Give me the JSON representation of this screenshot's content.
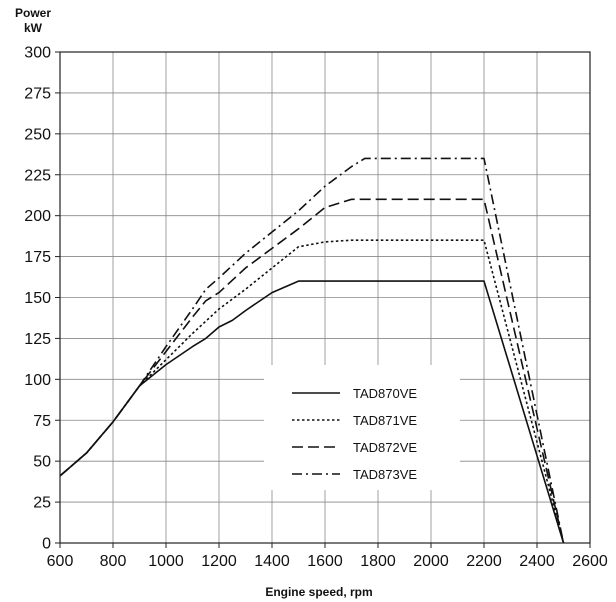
{
  "chart_data": {
    "type": "line",
    "title": "",
    "ylabel_line1": "Power",
    "ylabel_line2": "kW",
    "xlabel": "Engine speed, rpm",
    "xlim": [
      600,
      2600
    ],
    "ylim": [
      0,
      300
    ],
    "xticks": [
      600,
      800,
      1000,
      1200,
      1400,
      1600,
      1800,
      2000,
      2200,
      2400,
      2600
    ],
    "yticks": [
      0,
      25,
      50,
      75,
      100,
      125,
      150,
      175,
      200,
      225,
      250,
      275,
      300
    ],
    "grid": true,
    "legend_position": "center-bottom",
    "series": [
      {
        "name": "TAD870VE",
        "dash": "solid",
        "x": [
          600,
          700,
          800,
          900,
          1000,
          1100,
          1150,
          1200,
          1250,
          1300,
          1400,
          1500,
          1600,
          1700,
          1800,
          1900,
          2000,
          2100,
          2200,
          2500
        ],
        "y": [
          41,
          55,
          74,
          96,
          109,
          120,
          125,
          132,
          136,
          142,
          153,
          160,
          160,
          160,
          160,
          160,
          160,
          160,
          160,
          0
        ]
      },
      {
        "name": "TAD871VE",
        "dash": "dotted",
        "x": [
          600,
          700,
          800,
          900,
          1000,
          1100,
          1200,
          1300,
          1400,
          1500,
          1600,
          1700,
          1800,
          1900,
          2000,
          2100,
          2200,
          2500
        ],
        "y": [
          41,
          55,
          74,
          96,
          112,
          128,
          143,
          155,
          168,
          181,
          184,
          185,
          185,
          185,
          185,
          185,
          185,
          0
        ]
      },
      {
        "name": "TAD872VE",
        "dash": "dashed",
        "x": [
          600,
          700,
          800,
          900,
          1000,
          1100,
          1150,
          1200,
          1300,
          1400,
          1500,
          1600,
          1700,
          1800,
          1900,
          2000,
          2100,
          2200,
          2500
        ],
        "y": [
          41,
          55,
          74,
          96,
          117,
          138,
          148,
          153,
          168,
          180,
          192,
          205,
          210,
          210,
          210,
          210,
          210,
          210,
          0
        ]
      },
      {
        "name": "TAD873VE",
        "dash": "dashdot",
        "x": [
          600,
          700,
          800,
          900,
          1000,
          1100,
          1150,
          1200,
          1300,
          1400,
          1500,
          1600,
          1700,
          1750,
          1800,
          1900,
          2000,
          2100,
          2200,
          2500
        ],
        "y": [
          41,
          55,
          74,
          96,
          120,
          143,
          155,
          162,
          177,
          190,
          203,
          218,
          230,
          235,
          235,
          235,
          235,
          235,
          235,
          0
        ]
      }
    ]
  }
}
